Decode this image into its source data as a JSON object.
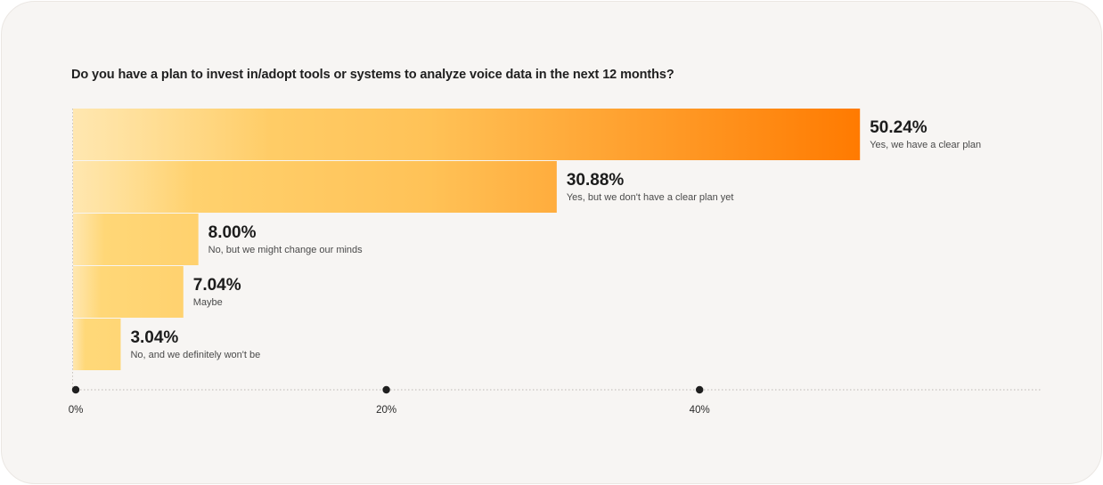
{
  "chart_data": {
    "type": "bar",
    "orientation": "horizontal",
    "title": "Do you have a plan to invest in/adopt tools or systems to analyze voice data in the next 12 months?",
    "categories": [
      "Yes, we have a clear plan",
      "Yes, but we don't have a clear plan yet",
      "No, but we might change our minds",
      "Maybe",
      "No, and we definitely won't be"
    ],
    "values": [
      50.24,
      30.88,
      8.0,
      7.04,
      3.04
    ],
    "value_labels": [
      "50.24%",
      "30.88%",
      "8.00%",
      "7.04%",
      "3.04%"
    ],
    "x_ticks": [
      {
        "value": 0,
        "label": "0%"
      },
      {
        "value": 20,
        "label": "20%"
      },
      {
        "value": 40,
        "label": "40%"
      }
    ],
    "xlim": [
      0,
      60
    ],
    "xlabel": "",
    "ylabel": "",
    "grid": false,
    "colors": {
      "bar_start": "#ffd97a",
      "bar_end": "#ff7a00",
      "card_background": "#f7f5f3",
      "axis": "#bdb8b3",
      "tick_dot": "#1f1f1f"
    }
  }
}
